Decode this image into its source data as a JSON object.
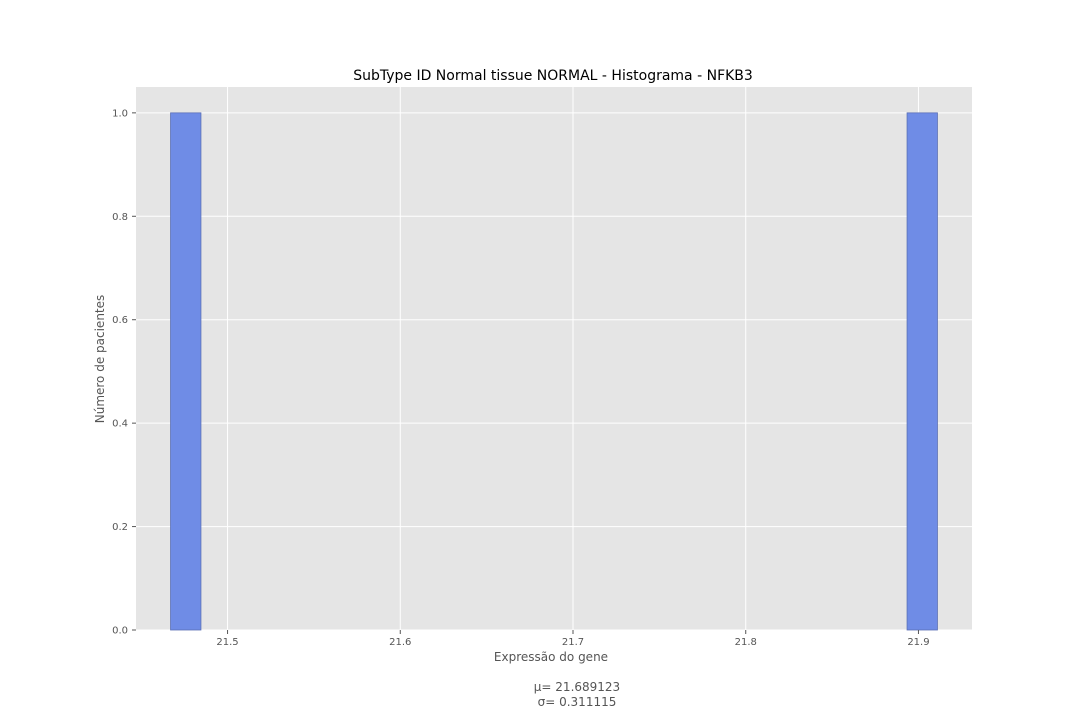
{
  "chart_data": {
    "type": "bar",
    "title": "SubType ID Normal tissue NORMAL - Histograma - NFKB3",
    "xlabel": "Expressão do gene",
    "ylabel": "Número de pacientes",
    "xlim": [
      21.447,
      21.931
    ],
    "ylim": [
      0.0,
      1.05
    ],
    "xticks": [
      21.5,
      21.6,
      21.7,
      21.8,
      21.9
    ],
    "xtick_labels": [
      "21.5",
      "21.6",
      "21.7",
      "21.8",
      "21.9"
    ],
    "yticks": [
      0.0,
      0.2,
      0.4,
      0.6,
      0.8,
      1.0
    ],
    "ytick_labels": [
      "0.0",
      "0.2",
      "0.4",
      "0.6",
      "0.8",
      "1.0"
    ],
    "grid": true,
    "bars": [
      {
        "x0": 21.467,
        "x1": 21.4846,
        "value": 1.0
      },
      {
        "x0": 21.8934,
        "x1": 21.911,
        "value": 1.0
      }
    ],
    "bar_color": "#6f8ce6",
    "bar_edge_color": "#5a6fb5",
    "background_color": "#e5e5e5",
    "grid_color": "#ffffff",
    "stats": {
      "mean_text": "μ= 21.689123",
      "std_text": "σ= 0.311115"
    }
  }
}
